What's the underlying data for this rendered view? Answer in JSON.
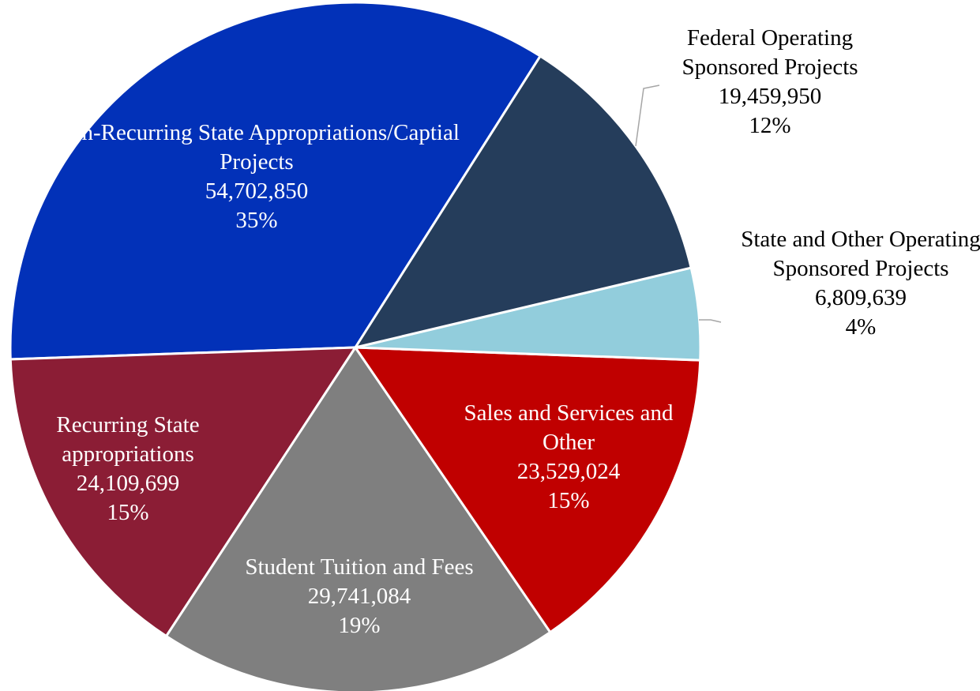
{
  "chart_data": {
    "type": "pie",
    "categories": [
      "Federal Operating Sponsored Projects",
      "State and Other Operating Sponsored Projects",
      "Sales and Services and Other",
      "Student Tuition and Fees",
      "Recurring State appropriations",
      "Non-Recurring State Appropriations/Captial Projects"
    ],
    "values": [
      19459950,
      6809639,
      23529024,
      29741084,
      24109699,
      54702850
    ],
    "value_labels": [
      "19,459,950",
      "6,809,639",
      "23,529,024",
      "29,741,084",
      "24,109,699",
      "54,702,850"
    ],
    "percent_labels": [
      "12%",
      "4%",
      "15%",
      "19%",
      "15%",
      "35%"
    ],
    "colors": [
      "#253d5b",
      "#92cddc",
      "#c00000",
      "#7f7f7f",
      "#8b1d35",
      "#0231b8"
    ]
  }
}
